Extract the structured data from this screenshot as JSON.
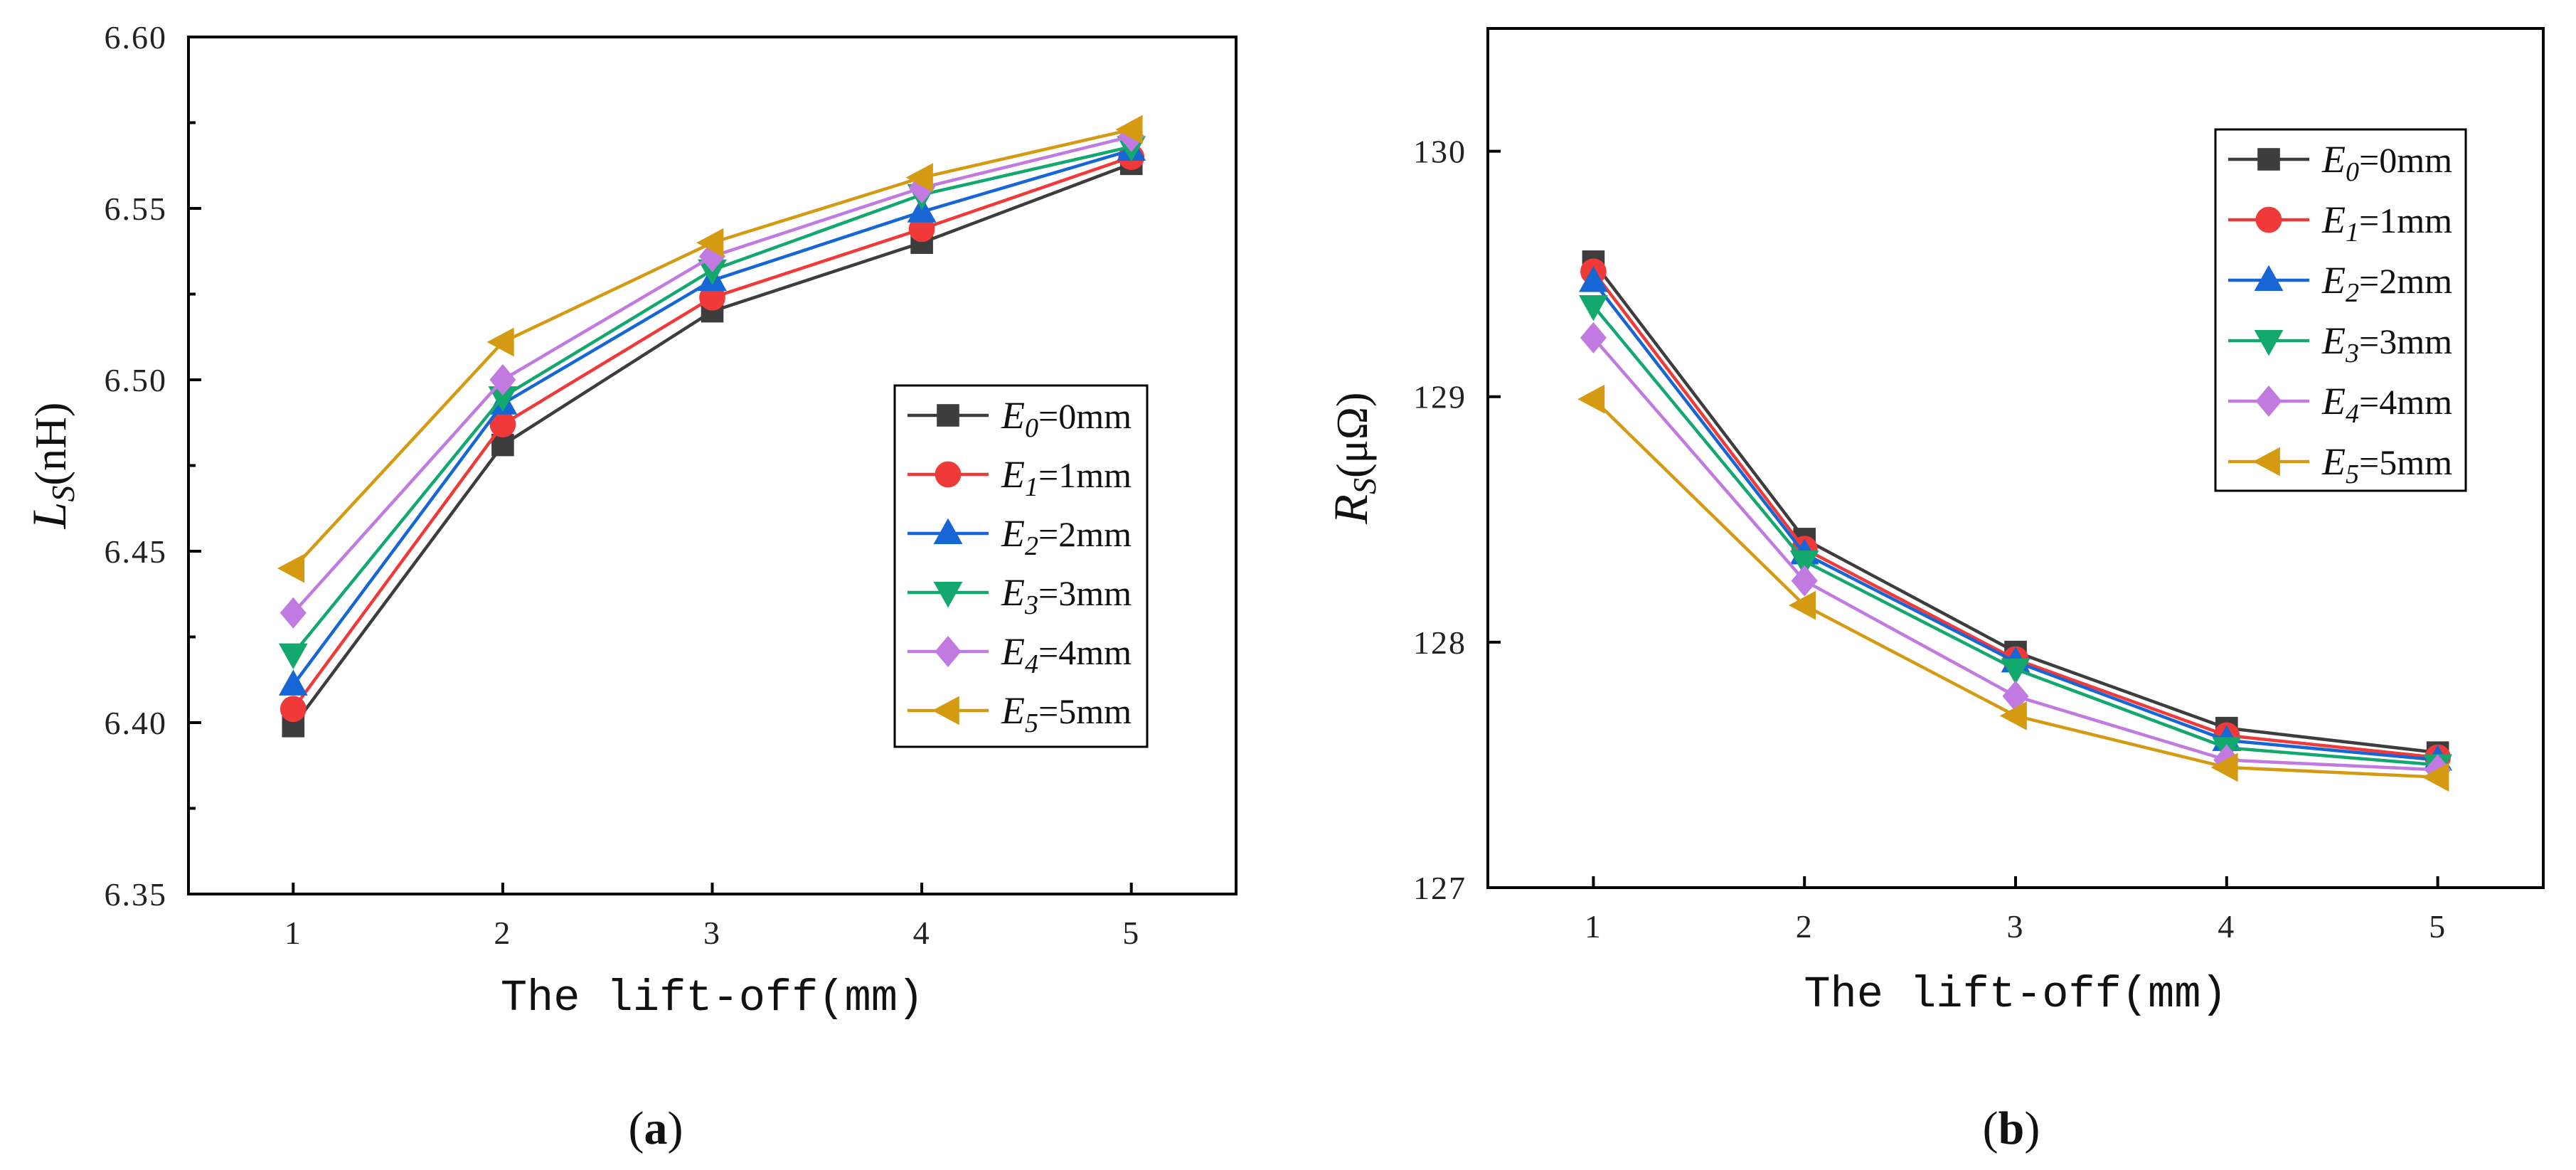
{
  "chart_data": [
    {
      "type": "line",
      "panel_label": {
        "open": "(",
        "letter": "a",
        "close": ")"
      },
      "title": "",
      "xlabel": "The lift-off(mm)",
      "ylabel": {
        "main": "L",
        "sub": "S",
        "unit": "(nH)"
      },
      "xlim": [
        0.5,
        5.5
      ],
      "ylim": [
        6.35,
        6.6
      ],
      "x": [
        1,
        2,
        3,
        4,
        5
      ],
      "xticks": [
        "1",
        "2",
        "3",
        "4",
        "5"
      ],
      "yticks": [
        "6.35",
        "6.40",
        "6.45",
        "6.50",
        "6.55",
        "6.60"
      ],
      "legend_position": "right-center",
      "series": [
        {
          "name": "E0=0mm",
          "var": "E",
          "sub": "0",
          "val": "=0mm",
          "color": "#3d3d3d",
          "marker": "square",
          "values": [
            6.399,
            6.481,
            6.52,
            6.54,
            6.563
          ]
        },
        {
          "name": "E1=1mm",
          "var": "E",
          "sub": "1",
          "val": "=1mm",
          "color": "#f03a3a",
          "marker": "circle",
          "values": [
            6.404,
            6.487,
            6.524,
            6.544,
            6.565
          ]
        },
        {
          "name": "E2=2mm",
          "var": "E",
          "sub": "2",
          "val": "=2mm",
          "color": "#1666d6",
          "marker": "triangle-up",
          "values": [
            6.411,
            6.493,
            6.529,
            6.549,
            6.567
          ]
        },
        {
          "name": "E3=3mm",
          "var": "E",
          "sub": "3",
          "val": "=3mm",
          "color": "#13a86d",
          "marker": "triangle-down",
          "values": [
            6.42,
            6.495,
            6.532,
            6.554,
            6.568
          ]
        },
        {
          "name": "E4=4mm",
          "var": "E",
          "sub": "4",
          "val": "=4mm",
          "color": "#c07ae0",
          "marker": "diamond",
          "values": [
            6.432,
            6.5,
            6.536,
            6.556,
            6.571
          ]
        },
        {
          "name": "E5=5mm",
          "var": "E",
          "sub": "5",
          "val": "=5mm",
          "color": "#d49a12",
          "marker": "triangle-left",
          "values": [
            6.445,
            6.511,
            6.54,
            6.559,
            6.573
          ]
        }
      ]
    },
    {
      "type": "line",
      "panel_label": {
        "open": "(",
        "letter": "b",
        "close": ")"
      },
      "title": "",
      "xlabel": "The lift-off(mm)",
      "ylabel": {
        "main": "R",
        "sub": "S",
        "unit": "(μΩ)"
      },
      "xlim": [
        0.5,
        5.5
      ],
      "ylim": [
        127,
        130.5
      ],
      "x": [
        1,
        2,
        3,
        4,
        5
      ],
      "xticks": [
        "1",
        "2",
        "3",
        "4",
        "5"
      ],
      "yticks": [
        "127",
        "128",
        "129",
        "130"
      ],
      "legend_position": "top-right",
      "series": [
        {
          "name": "E0=0mm",
          "var": "E",
          "sub": "0",
          "val": "=0mm",
          "color": "#3d3d3d",
          "marker": "square",
          "values": [
            129.55,
            128.42,
            127.96,
            127.65,
            127.55
          ]
        },
        {
          "name": "E1=1mm",
          "var": "E",
          "sub": "1",
          "val": "=1mm",
          "color": "#f03a3a",
          "marker": "circle",
          "values": [
            129.51,
            128.38,
            127.93,
            127.62,
            127.53
          ]
        },
        {
          "name": "E2=2mm",
          "var": "E",
          "sub": "2",
          "val": "=2mm",
          "color": "#1666d6",
          "marker": "triangle-up",
          "values": [
            129.47,
            128.36,
            127.92,
            127.6,
            127.52
          ]
        },
        {
          "name": "E3=3mm",
          "var": "E",
          "sub": "3",
          "val": "=3mm",
          "color": "#13a86d",
          "marker": "triangle-down",
          "values": [
            129.37,
            128.33,
            127.89,
            127.57,
            127.5
          ]
        },
        {
          "name": "E4=4mm",
          "var": "E",
          "sub": "4",
          "val": "=4mm",
          "color": "#c07ae0",
          "marker": "diamond",
          "values": [
            129.24,
            128.25,
            127.78,
            127.52,
            127.48
          ]
        },
        {
          "name": "E5=5mm",
          "var": "E",
          "sub": "5",
          "val": "=5mm",
          "color": "#d49a12",
          "marker": "triangle-left",
          "values": [
            128.99,
            128.15,
            127.7,
            127.49,
            127.45
          ]
        }
      ]
    }
  ]
}
